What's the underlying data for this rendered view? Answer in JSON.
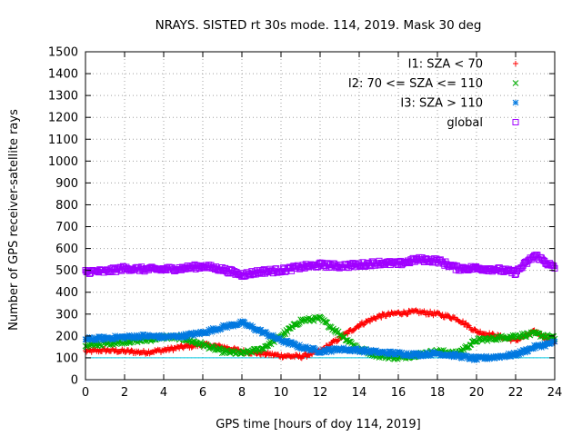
{
  "chart_data": {
    "type": "scatter",
    "title": "NRAYS. SISTED rt 30s mode. 114, 2019. Mask 30 deg",
    "xlabel": "GPS time [hours of doy 114, 2019]",
    "ylabel": "Number of GPS receiver-satellite rays",
    "xlim": [
      0,
      24
    ],
    "ylim": [
      0,
      1500
    ],
    "xticks": [
      "0",
      "2",
      "4",
      "6",
      "8",
      "10",
      "12",
      "14",
      "16",
      "18",
      "20",
      "22",
      "24"
    ],
    "yticks": [
      "0",
      "100",
      "200",
      "300",
      "400",
      "500",
      "600",
      "700",
      "800",
      "900",
      "1000",
      "1100",
      "1200",
      "1300",
      "1400",
      "1500"
    ],
    "grid": true,
    "legend_position": "top-right",
    "reference_line": {
      "y": 100,
      "color": "#00c8e0"
    },
    "series": [
      {
        "name": "I1: SZA < 70",
        "marker": "+",
        "color": "#ff0000",
        "x": [
          0,
          1,
          2,
          3,
          4,
          5,
          6,
          7,
          8,
          9,
          10,
          11,
          12,
          13,
          14,
          15,
          16,
          17,
          18,
          19,
          20,
          21,
          22,
          23,
          24
        ],
        "values": [
          130,
          135,
          130,
          125,
          135,
          150,
          160,
          150,
          130,
          120,
          110,
          105,
          130,
          190,
          250,
          290,
          305,
          310,
          300,
          280,
          220,
          200,
          180,
          220,
          170
        ]
      },
      {
        "name": "I2: 70 <= SZA <= 110",
        "marker": "x",
        "color": "#00b000",
        "x": [
          0,
          1,
          2,
          3,
          4,
          5,
          6,
          7,
          8,
          9,
          10,
          11,
          12,
          13,
          14,
          15,
          16,
          17,
          18,
          19,
          20,
          21,
          22,
          23,
          24
        ],
        "values": [
          155,
          165,
          175,
          180,
          195,
          190,
          160,
          130,
          120,
          140,
          200,
          270,
          280,
          210,
          140,
          110,
          100,
          115,
          130,
          120,
          180,
          190,
          200,
          210,
          190
        ]
      },
      {
        "name": "I3: SZA > 110",
        "marker": "*",
        "color": "#0078e0",
        "x": [
          0,
          1,
          2,
          3,
          4,
          5,
          6,
          7,
          8,
          9,
          10,
          11,
          12,
          13,
          14,
          15,
          16,
          17,
          18,
          19,
          20,
          21,
          22,
          23,
          24
        ],
        "values": [
          185,
          190,
          195,
          200,
          195,
          200,
          215,
          240,
          260,
          220,
          180,
          150,
          130,
          140,
          135,
          125,
          120,
          115,
          120,
          110,
          95,
          105,
          115,
          150,
          170
        ]
      },
      {
        "name": "global",
        "marker": "square",
        "color": "#a000ff",
        "x": [
          0,
          1,
          2,
          3,
          4,
          5,
          6,
          7,
          8,
          9,
          10,
          11,
          12,
          13,
          14,
          15,
          16,
          17,
          18,
          19,
          20,
          21,
          22,
          23,
          24
        ],
        "values": [
          495,
          495,
          510,
          505,
          505,
          510,
          520,
          505,
          480,
          495,
          500,
          515,
          525,
          520,
          525,
          535,
          530,
          550,
          545,
          510,
          510,
          505,
          490,
          570,
          510
        ]
      }
    ]
  }
}
